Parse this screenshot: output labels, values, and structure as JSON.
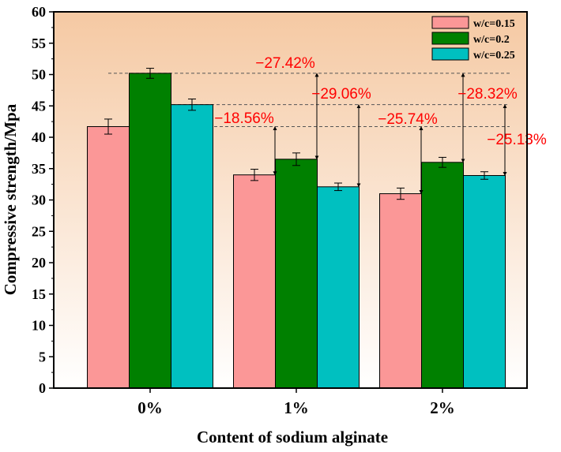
{
  "chart_data": {
    "type": "bar",
    "xlabel": "Content of sodium alginate",
    "ylabel": "Compressive strength/Mpa",
    "ylim": [
      0,
      60
    ],
    "yticks": [
      0,
      5,
      10,
      15,
      20,
      25,
      30,
      35,
      40,
      45,
      50,
      55,
      60
    ],
    "categories": [
      "0%",
      "1%",
      "2%"
    ],
    "series": [
      {
        "name": "w/c=0.15",
        "color": "#fb9797",
        "values": [
          41.7,
          34.0,
          31.0
        ],
        "errors": [
          1.2,
          0.9,
          0.9
        ]
      },
      {
        "name": "w/c=0.2",
        "color": "#008000",
        "values": [
          50.2,
          36.5,
          36.0
        ],
        "errors": [
          0.8,
          1.0,
          0.8
        ]
      },
      {
        "name": "w/c=0.25",
        "color": "#00c0c0",
        "values": [
          45.2,
          32.1,
          33.9
        ],
        "errors": [
          0.9,
          0.6,
          0.6
        ]
      }
    ],
    "legend_position": "top-right",
    "reference_lines": [
      50.2,
      45.2,
      41.7
    ],
    "background_gradient": [
      "#f5c9a3",
      "#ffffff"
    ],
    "annotation_color": "#ff0000",
    "annotations": [
      {
        "text": "−18.56%",
        "category": 1,
        "series": 0,
        "from": 41.7,
        "to": 34.0
      },
      {
        "text": "−27.42%",
        "category": 1,
        "series": 1,
        "from": 50.2,
        "to": 36.5
      },
      {
        "text": "−29.06%",
        "category": 1,
        "series": 2,
        "from": 45.2,
        "to": 32.1
      },
      {
        "text": "−25.74%",
        "category": 2,
        "series": 0,
        "from": 41.7,
        "to": 31.0
      },
      {
        "text": "−28.32%",
        "category": 2,
        "series": 1,
        "from": 50.2,
        "to": 36.0
      },
      {
        "text": "−25.13%",
        "category": 2,
        "series": 2,
        "from": 45.2,
        "to": 33.9
      }
    ]
  }
}
